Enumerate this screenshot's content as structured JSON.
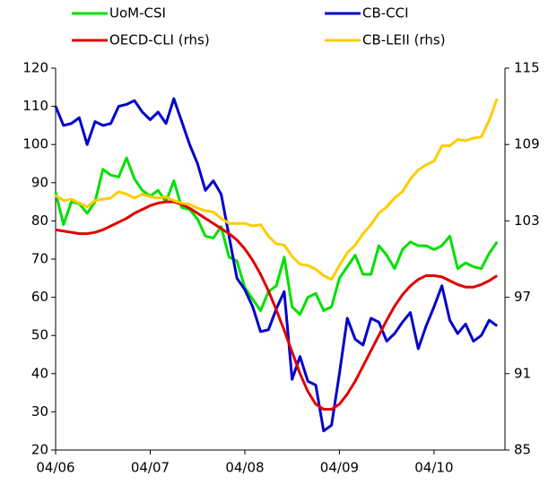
{
  "chart_data": {
    "type": "line",
    "categories": [
      "04/06",
      null,
      null,
      null,
      null,
      null,
      null,
      null,
      null,
      null,
      null,
      null,
      "04/07",
      null,
      null,
      null,
      null,
      null,
      null,
      null,
      null,
      null,
      null,
      null,
      "04/08",
      null,
      null,
      null,
      null,
      null,
      null,
      null,
      null,
      null,
      null,
      null,
      "04/09",
      null,
      null,
      null,
      null,
      null,
      null,
      null,
      null,
      null,
      null,
      null,
      "04/10",
      null,
      null,
      null,
      null,
      null,
      null,
      null,
      null
    ],
    "series": [
      {
        "name": "UoM-CSI",
        "color": "#00e000",
        "axis": "y",
        "values": [
          87.5,
          79,
          85,
          84.5,
          82,
          85,
          93.5,
          92,
          91.5,
          96.5,
          91,
          88,
          86.5,
          88,
          85,
          90.5,
          83.5,
          83,
          80.5,
          76,
          75.5,
          78.5,
          70.5,
          69.5,
          62.5,
          59.5,
          56.5,
          61.5,
          63,
          70.5,
          57.5,
          55.5,
          60,
          61,
          56.5,
          57.5,
          65,
          68,
          71,
          66,
          66,
          73.5,
          71,
          67.5,
          72.5,
          74.5,
          73.5,
          73.5,
          72.5,
          73.5,
          76,
          67.5,
          69,
          68,
          67.5,
          71.5,
          74.5
        ]
      },
      {
        "name": "CB-CCI",
        "color": "#0000cc",
        "axis": "y",
        "values": [
          110,
          105,
          105.5,
          107,
          100,
          106,
          105,
          105.5,
          110,
          110.5,
          111.5,
          108.5,
          106.5,
          108.5,
          105.5,
          112,
          106,
          100,
          95,
          88,
          90.5,
          87,
          76,
          65,
          62,
          57.5,
          51,
          51.5,
          57,
          61.5,
          38.5,
          44.5,
          38,
          37,
          25,
          26.5,
          40,
          54.5,
          49,
          47.5,
          54.5,
          53.5,
          48.5,
          50.5,
          53.5,
          56,
          46.5,
          52.5,
          57.5,
          63,
          54,
          50.5,
          53,
          48.5,
          50,
          54,
          52.5
        ]
      },
      {
        "name": "OECD-CLI (rhs)",
        "color": "#e00000",
        "axis": "y2",
        "values": [
          102.3,
          102.2,
          102.1,
          102.0,
          102.0,
          102.1,
          102.3,
          102.6,
          102.9,
          103.2,
          103.6,
          103.9,
          104.2,
          104.4,
          104.5,
          104.5,
          104.3,
          104.0,
          103.6,
          103.2,
          102.8,
          102.4,
          102.0,
          101.5,
          100.8,
          99.9,
          98.8,
          97.5,
          96.0,
          94.4,
          92.7,
          91.0,
          89.6,
          88.6,
          88.2,
          88.2,
          88.6,
          89.4,
          90.4,
          91.6,
          92.8,
          94.0,
          95.2,
          96.3,
          97.2,
          97.9,
          98.4,
          98.7,
          98.7,
          98.6,
          98.3,
          98.0,
          97.8,
          97.8,
          98.0,
          98.3,
          98.7
        ]
      },
      {
        "name": "CB-LEII (rhs)",
        "color": "#ffcc00",
        "axis": "y2",
        "values": [
          105.0,
          104.6,
          104.7,
          104.4,
          104.1,
          104.6,
          104.7,
          104.8,
          105.3,
          105.1,
          104.8,
          105.1,
          104.9,
          104.8,
          104.9,
          104.6,
          104.4,
          104.3,
          104.0,
          103.8,
          103.7,
          103.2,
          102.8,
          102.8,
          102.8,
          102.6,
          102.7,
          101.8,
          101.2,
          101.1,
          100.2,
          99.6,
          99.5,
          99.2,
          98.7,
          98.4,
          99.5,
          100.5,
          101.1,
          102.0,
          102.7,
          103.6,
          104.1,
          104.8,
          105.3,
          106.3,
          107.0,
          107.4,
          107.7,
          108.9,
          108.9,
          109.4,
          109.3,
          109.5,
          109.6,
          110.9,
          112.6
        ]
      }
    ],
    "ylim": [
      20,
      120
    ],
    "yticks": [
      20,
      30,
      40,
      50,
      60,
      70,
      80,
      90,
      100,
      110,
      120
    ],
    "y2lim": [
      85,
      115
    ],
    "y2ticks": [
      85,
      91,
      97,
      103,
      109,
      115
    ]
  }
}
